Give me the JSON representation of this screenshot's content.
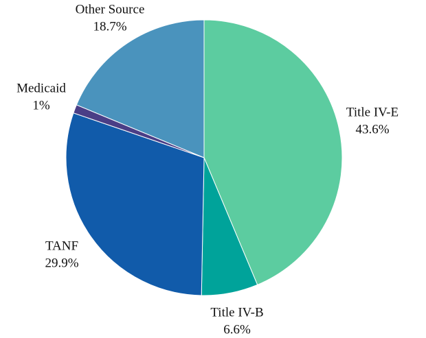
{
  "chart_data": {
    "type": "pie",
    "categories": [
      "Title IV-E",
      "Title IV-B",
      "TANF",
      "Medicaid",
      "Other Source"
    ],
    "values": [
      43.6,
      6.6,
      29.9,
      1,
      18.7
    ],
    "value_labels": [
      "43.6%",
      "6.6%",
      "29.9%",
      "1%",
      "18.7%"
    ],
    "colors": [
      "#5ccca0",
      "#00a39a",
      "#115baa",
      "#4a3e86",
      "#4a93bd"
    ]
  }
}
